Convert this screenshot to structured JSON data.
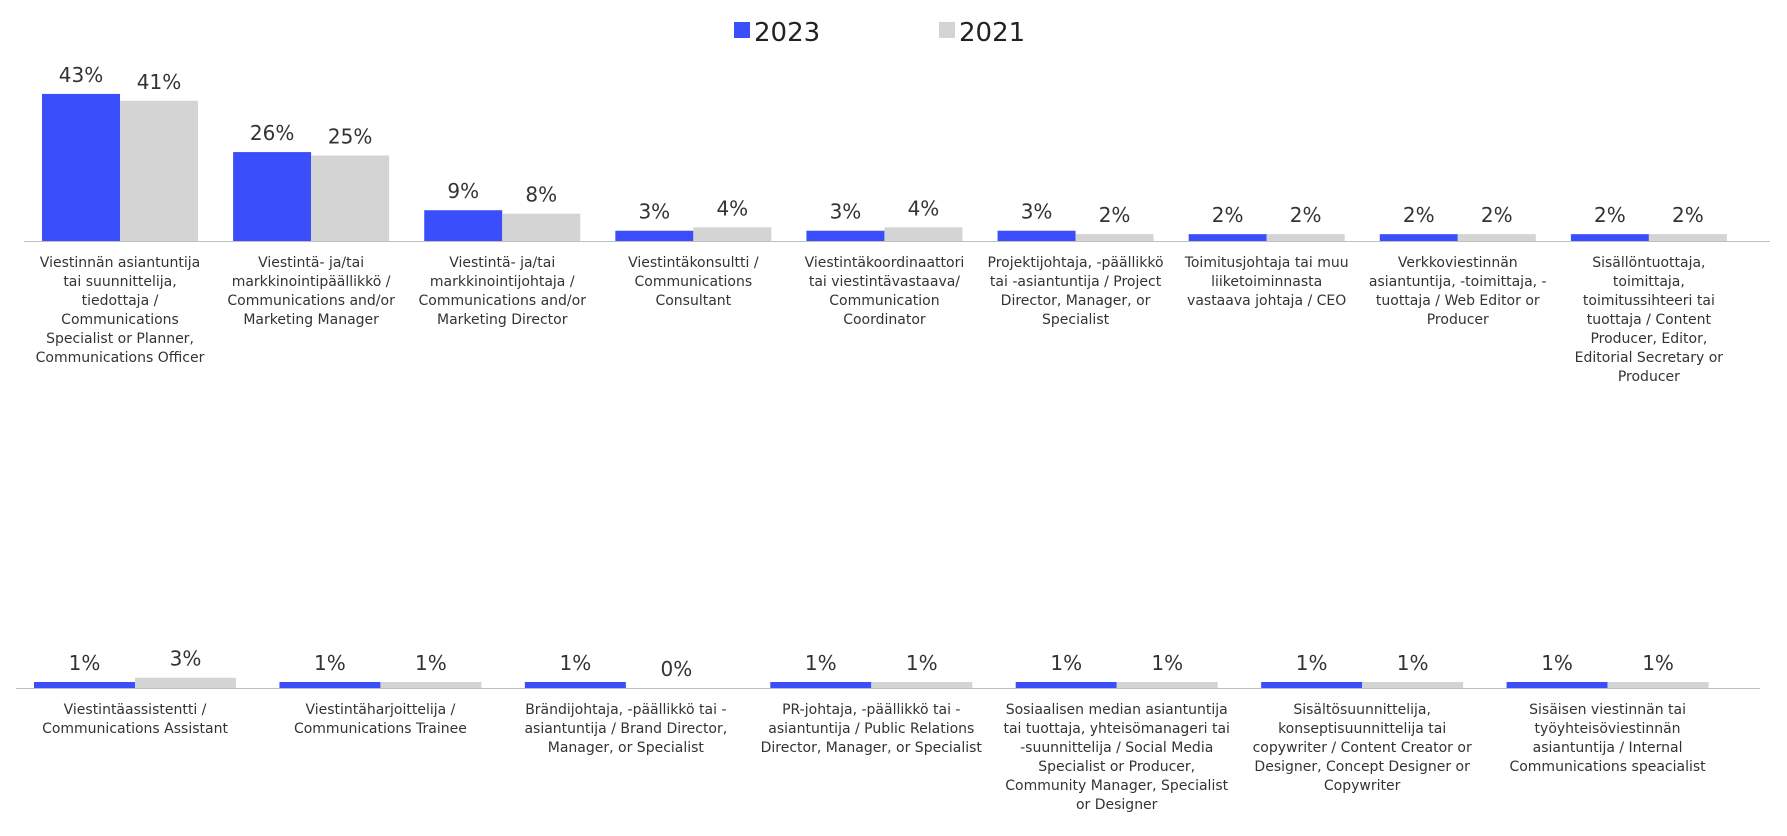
{
  "chart_data": {
    "type": "bar",
    "legend_position": "top-center",
    "series": [
      {
        "name": "2023",
        "color": "#3b4efc"
      },
      {
        "name": "2021",
        "color": "#d4d4d4"
      }
    ],
    "rows": [
      {
        "ylim": [
          0,
          43
        ],
        "categories": [
          {
            "label": "Viestinnän asiantuntija tai suunnittelija, tiedottaja / Communications Specialist or Planner, Communications Officer",
            "values": [
              43,
              41
            ],
            "value_labels": [
              "43%",
              "41%"
            ]
          },
          {
            "label": "Viestintä- ja/tai markkinointipäällikkö / Communications and/or Marketing Manager",
            "values": [
              26,
              25
            ],
            "value_labels": [
              "26%",
              "25%"
            ]
          },
          {
            "label": "Viestintä- ja/tai markkinointijohtaja / Communications and/or Marketing Director",
            "values": [
              9,
              8
            ],
            "value_labels": [
              "9%",
              "8%"
            ]
          },
          {
            "label": "Viestintäkonsultti / Communications Consultant",
            "values": [
              3,
              4
            ],
            "value_labels": [
              "3%",
              "4%"
            ]
          },
          {
            "label": "Viestintäkoordinaattori tai viestintävastaava/ Communication Coordinator",
            "values": [
              3,
              4
            ],
            "value_labels": [
              "3%",
              "4%"
            ]
          },
          {
            "label": "Projektijohtaja, -päällikkö tai -asiantuntija / Project Director, Manager, or Specialist",
            "values": [
              3,
              2
            ],
            "value_labels": [
              "3%",
              "2%"
            ]
          },
          {
            "label": "Toimitusjohtaja tai muu liiketoiminnasta vastaava johtaja / CEO",
            "values": [
              2,
              2
            ],
            "value_labels": [
              "2%",
              "2%"
            ]
          },
          {
            "label": "Verkkoviestinnän asiantuntija, -toimittaja, -tuottaja / Web Editor or Producer",
            "values": [
              2,
              2
            ],
            "value_labels": [
              "2%",
              "2%"
            ]
          },
          {
            "label": "Sisällöntuottaja, toimittaja, toimitussihteeri tai tuottaja / Content Producer, Editor, Editorial Secretary or Producer",
            "values": [
              2,
              2
            ],
            "value_labels": [
              "2%",
              "2%"
            ]
          }
        ]
      },
      {
        "ylim": [
          0,
          43
        ],
        "categories": [
          {
            "label": "Viestintäassistentti / Communications Assistant",
            "values": [
              1,
              3
            ],
            "value_labels": [
              "1%",
              "3%"
            ]
          },
          {
            "label": "Viestintäharjoittelija / Communications Trainee",
            "values": [
              1,
              1
            ],
            "value_labels": [
              "1%",
              "1%"
            ]
          },
          {
            "label": "Brändijohtaja, -päällikkö tai -asiantuntija / Brand Director, Manager, or Specialist",
            "values": [
              1,
              0
            ],
            "value_labels": [
              "1%",
              "0%"
            ]
          },
          {
            "label": "PR-johtaja, -päällikkö tai -asiantuntija / Public Relations Director, Manager, or Specialist",
            "values": [
              1,
              1
            ],
            "value_labels": [
              "1%",
              "1%"
            ]
          },
          {
            "label": "Sosiaalisen median asiantuntija tai tuottaja, yhteisömanageri tai -suunnittelija / Social Media Specialist or Producer, Community Manager, Specialist or Designer",
            "values": [
              1,
              1
            ],
            "value_labels": [
              "1%",
              "1%"
            ]
          },
          {
            "label": "Sisältösuunnittelija, konseptisuunnittelija tai copywriter / Content Creator or Designer, Concept Designer or Copywriter",
            "values": [
              1,
              1
            ],
            "value_labels": [
              "1%",
              "1%"
            ]
          },
          {
            "label": "Sisäisen viestinnän tai työyhteisöviestinnän asiantuntija / Internal Communications speacialist",
            "values": [
              1,
              1
            ],
            "value_labels": [
              "1%",
              "1%"
            ]
          }
        ]
      }
    ]
  }
}
